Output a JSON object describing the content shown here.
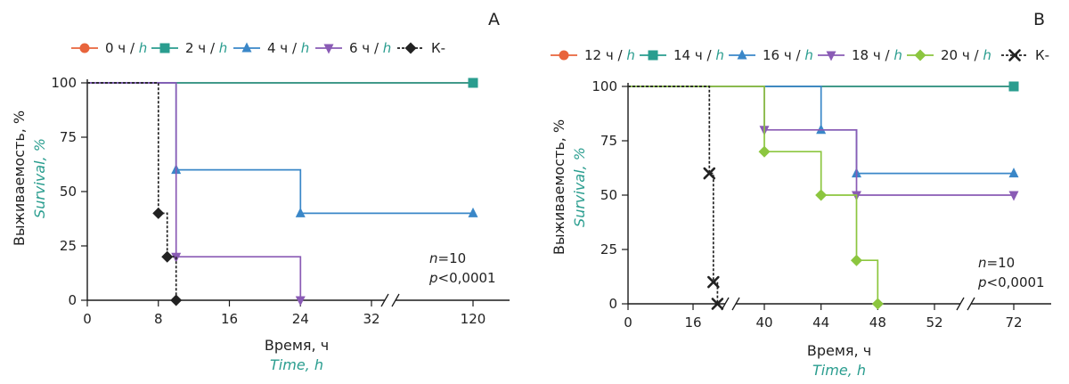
{
  "chart_data": [
    {
      "type": "line",
      "panel": "A",
      "xlabel": "Время, ч",
      "xlabel_en": "Time, h",
      "ylabel": "Выживаемость, %",
      "ylabel_en": "Survival, %",
      "xticks": [
        "0",
        "8",
        "16",
        "24",
        "32",
        "120"
      ],
      "yticks": [
        "0",
        "25",
        "50",
        "75",
        "100"
      ],
      "ylim": [
        0,
        100
      ],
      "axis_break": "between 32 and 120",
      "legend_position": "top",
      "annotation": [
        "n=10",
        "p<0,0001"
      ],
      "series": [
        {
          "name": "0 ч / h",
          "color": "#e8643c",
          "marker": "circle",
          "dashed": false,
          "points": [
            [
              0,
              100
            ],
            [
              120,
              100
            ]
          ],
          "markers": [
            [
              120,
              100
            ]
          ]
        },
        {
          "name": "2 ч / h",
          "color": "#2a9d8f",
          "marker": "square",
          "dashed": false,
          "points": [
            [
              0,
              100
            ],
            [
              120,
              100
            ]
          ],
          "markers": [
            [
              120,
              100
            ]
          ]
        },
        {
          "name": "4 ч / h",
          "color": "#3a87c8",
          "marker": "triangle-up",
          "dashed": false,
          "points": [
            [
              0,
              100
            ],
            [
              10,
              100
            ],
            [
              10,
              60
            ],
            [
              24,
              60
            ],
            [
              24,
              40
            ],
            [
              120,
              40
            ]
          ],
          "markers": [
            [
              10,
              60
            ],
            [
              24,
              40
            ],
            [
              120,
              40
            ]
          ]
        },
        {
          "name": "6 ч / h",
          "color": "#8a5bb5",
          "marker": "triangle-down",
          "dashed": false,
          "points": [
            [
              0,
              100
            ],
            [
              10,
              100
            ],
            [
              10,
              20
            ],
            [
              24,
              20
            ],
            [
              24,
              0
            ]
          ],
          "markers": [
            [
              10,
              20
            ],
            [
              24,
              0
            ]
          ]
        },
        {
          "name": "К-",
          "color": "#222222",
          "marker": "diamond",
          "dashed": true,
          "points": [
            [
              0,
              100
            ],
            [
              8,
              100
            ],
            [
              8,
              40
            ],
            [
              9,
              40
            ],
            [
              9,
              20
            ],
            [
              10,
              20
            ],
            [
              10,
              0
            ]
          ],
          "markers": [
            [
              8,
              40
            ],
            [
              9,
              20
            ],
            [
              10,
              0
            ]
          ]
        }
      ]
    },
    {
      "type": "line",
      "panel": "B",
      "xlabel": "Время, ч",
      "xlabel_en": "Time, h",
      "ylabel": "Выживаемость, %",
      "ylabel_en": "Survival, %",
      "xticks": [
        "0",
        "16",
        "40",
        "44",
        "48",
        "52",
        "72"
      ],
      "yticks": [
        "0",
        "25",
        "50",
        "75",
        "100"
      ],
      "ylim": [
        0,
        100
      ],
      "axis_break": "between 16 and 40, between 52 and 72",
      "legend_position": "top",
      "annotation": [
        "n=10",
        "p<0,0001"
      ],
      "series": [
        {
          "name": "12 ч / h",
          "color": "#e8643c",
          "marker": "circle",
          "dashed": false,
          "points": [
            [
              0,
              100
            ],
            [
              72,
              100
            ]
          ],
          "markers": [
            [
              72,
              100
            ]
          ]
        },
        {
          "name": "14 ч / h",
          "color": "#2a9d8f",
          "marker": "square",
          "dashed": false,
          "points": [
            [
              0,
              100
            ],
            [
              72,
              100
            ]
          ],
          "markers": [
            [
              72,
              100
            ]
          ]
        },
        {
          "name": "16 ч / h",
          "color": "#3a87c8",
          "marker": "triangle-up",
          "dashed": false,
          "points": [
            [
              0,
              100
            ],
            [
              44,
              100
            ],
            [
              44,
              80
            ],
            [
              46.5,
              80
            ],
            [
              46.5,
              60
            ],
            [
              72,
              60
            ]
          ],
          "markers": [
            [
              44,
              80
            ],
            [
              46.5,
              60
            ],
            [
              72,
              60
            ]
          ]
        },
        {
          "name": "18 ч / h",
          "color": "#8a5bb5",
          "marker": "triangle-down",
          "dashed": false,
          "points": [
            [
              0,
              100
            ],
            [
              40,
              100
            ],
            [
              40,
              80
            ],
            [
              46.5,
              80
            ],
            [
              46.5,
              50
            ],
            [
              72,
              50
            ]
          ],
          "markers": [
            [
              40,
              80
            ],
            [
              46.5,
              50
            ],
            [
              72,
              50
            ]
          ]
        },
        {
          "name": "20 ч / h",
          "color": "#8cc63f",
          "marker": "diamond",
          "dashed": false,
          "points": [
            [
              0,
              100
            ],
            [
              40,
              100
            ],
            [
              40,
              70
            ],
            [
              44,
              70
            ],
            [
              44,
              50
            ],
            [
              46.5,
              50
            ],
            [
              46.5,
              20
            ],
            [
              48,
              20
            ],
            [
              48,
              0
            ]
          ],
          "markers": [
            [
              40,
              70
            ],
            [
              44,
              50
            ],
            [
              46.5,
              20
            ],
            [
              48,
              0
            ]
          ]
        },
        {
          "name": "К-",
          "color": "#222222",
          "marker": "x",
          "dashed": true,
          "points": [
            [
              0,
              100
            ],
            [
              20,
              100
            ],
            [
              20,
              60
            ],
            [
              21,
              60
            ],
            [
              21,
              10
            ],
            [
              22,
              10
            ],
            [
              22,
              0
            ]
          ],
          "markers": [
            [
              20,
              60
            ],
            [
              21,
              10
            ],
            [
              22,
              0
            ]
          ]
        }
      ]
    }
  ]
}
